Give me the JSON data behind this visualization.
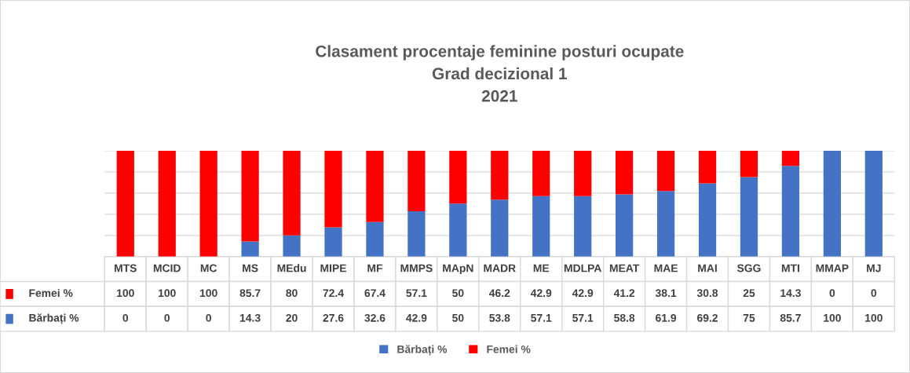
{
  "chart_data": {
    "type": "bar",
    "title": "Clasament procentaje feminine posturi ocupate\nGrad decizional 1\n2021",
    "categories": [
      "MTS",
      "MCID",
      "MC",
      "MS",
      "MEdu",
      "MIPE",
      "MF",
      "MMPS",
      "MApN",
      "MADR",
      "ME",
      "MDLPA",
      "MEAT",
      "MAE",
      "MAI",
      "SGG",
      "MTI",
      "MMAP",
      "MJ"
    ],
    "stacked": true,
    "series": [
      {
        "name": "Bărbați %",
        "color": "#4472c4",
        "values": [
          0,
          0,
          0,
          14.3,
          20,
          27.6,
          32.6,
          42.9,
          50,
          53.8,
          57.1,
          57.1,
          58.8,
          61.9,
          69.2,
          75,
          85.7,
          100,
          100
        ]
      },
      {
        "name": "Femei %",
        "color": "#ff0000",
        "values": [
          100,
          100,
          100,
          85.7,
          80,
          72.4,
          67.4,
          57.1,
          50,
          46.2,
          42.9,
          42.9,
          41.2,
          38.1,
          30.8,
          25,
          14.3,
          0,
          0
        ]
      }
    ],
    "ylim": [
      0,
      100
    ],
    "yticks": [
      {
        "value": 0,
        "label": null
      },
      {
        "value": 20,
        "label": null
      },
      {
        "value": 40,
        "label": null
      },
      {
        "value": 60,
        "label": null
      },
      {
        "value": 80,
        "label": null
      },
      {
        "value": 100,
        "label": null
      }
    ],
    "grid": "y",
    "legend": "bottom",
    "data_labels": true,
    "tick_labels": "x"
  }
}
